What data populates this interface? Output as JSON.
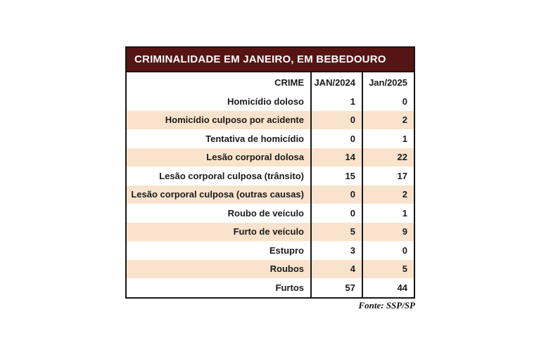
{
  "chart_data": {
    "type": "table",
    "title": "CRIMINALIDADE EM JANEIRO, EM BEBEDOURO",
    "columns": [
      "CRIME",
      "JAN/2024",
      "Jan/2025"
    ],
    "rows": [
      [
        "Homicídio doloso",
        1,
        0
      ],
      [
        "Homicídio culposo por acidente",
        0,
        2
      ],
      [
        "Tentativa de homicídio",
        0,
        1
      ],
      [
        "Lesão corporal dolosa",
        14,
        22
      ],
      [
        "Lesão corporal culposa (trânsito)",
        15,
        17
      ],
      [
        "Lesão corporal culposa (outras causas)",
        0,
        2
      ],
      [
        "Roubo de veículo",
        0,
        1
      ],
      [
        "Furto de veículo",
        5,
        9
      ],
      [
        "Estupro",
        3,
        0
      ],
      [
        "Roubos",
        4,
        5
      ],
      [
        "Furtos",
        57,
        44
      ]
    ],
    "source": "Fonte: SSP/SP",
    "layout_hints": {
      "row_striping": "alternating white and peach starting white",
      "value_alignment": "right",
      "header_alignment": "right"
    }
  },
  "colors": {
    "title_bg": "#571414",
    "title_text": "#ffffff",
    "row_alt_bg": "#fae3cd",
    "row_bg": "#ffffff",
    "border": "#161616"
  }
}
